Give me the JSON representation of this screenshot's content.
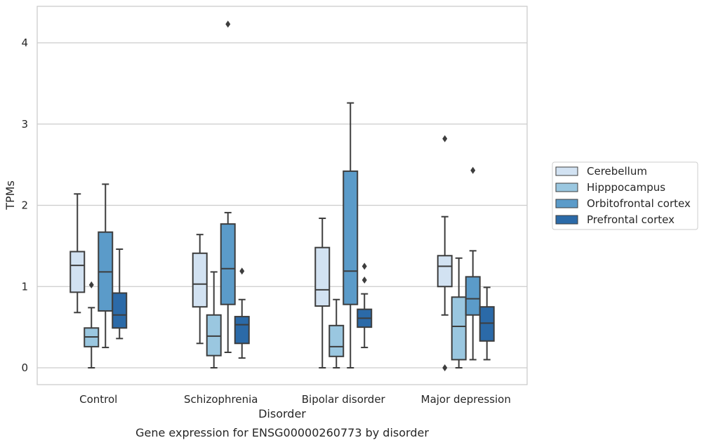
{
  "caption": "Gene expression for ENSG00000260773 by disorder",
  "chart_data": {
    "type": "box",
    "xlabel": "Disorder",
    "ylabel": "TPMs",
    "ylim": [
      -0.2,
      4.45
    ],
    "yticks": [
      0,
      1,
      2,
      3,
      4
    ],
    "grid": "horizontal",
    "legend_placement": "right",
    "categories": [
      "Control",
      "Schizophrenia",
      "Bipolar disorder",
      "Major depression"
    ],
    "series": [
      {
        "name": "Cerebellum",
        "color": "#d2e2f2",
        "boxes": [
          {
            "whislo": 0.68,
            "q1": 0.93,
            "med": 1.26,
            "q3": 1.43,
            "whishi": 2.14,
            "fliers": []
          },
          {
            "whislo": 0.3,
            "q1": 0.75,
            "med": 1.03,
            "q3": 1.41,
            "whishi": 1.64,
            "fliers": []
          },
          {
            "whislo": 0.0,
            "q1": 0.76,
            "med": 0.96,
            "q3": 1.48,
            "whishi": 1.84,
            "fliers": []
          },
          {
            "whislo": 0.65,
            "q1": 1.0,
            "med": 1.25,
            "q3": 1.38,
            "whishi": 1.86,
            "fliers": [
              0.0,
              2.82
            ]
          }
        ]
      },
      {
        "name": "Hipppocampus",
        "color": "#9ac7e0",
        "boxes": [
          {
            "whislo": 0.0,
            "q1": 0.26,
            "med": 0.38,
            "q3": 0.49,
            "whishi": 0.74,
            "fliers": [
              1.02
            ]
          },
          {
            "whislo": 0.0,
            "q1": 0.15,
            "med": 0.39,
            "q3": 0.65,
            "whishi": 1.18,
            "fliers": []
          },
          {
            "whislo": 0.0,
            "q1": 0.14,
            "med": 0.26,
            "q3": 0.52,
            "whishi": 0.84,
            "fliers": []
          },
          {
            "whislo": 0.0,
            "q1": 0.1,
            "med": 0.51,
            "q3": 0.87,
            "whishi": 1.35,
            "fliers": []
          }
        ]
      },
      {
        "name": "Orbitofrontal cortex",
        "color": "#5b9bc9",
        "boxes": [
          {
            "whislo": 0.25,
            "q1": 0.7,
            "med": 1.18,
            "q3": 1.67,
            "whishi": 2.26,
            "fliers": []
          },
          {
            "whislo": 0.19,
            "q1": 0.78,
            "med": 1.22,
            "q3": 1.77,
            "whishi": 1.91,
            "fliers": [
              4.23
            ]
          },
          {
            "whislo": 0.0,
            "q1": 0.78,
            "med": 1.19,
            "q3": 2.42,
            "whishi": 3.26,
            "fliers": []
          },
          {
            "whislo": 0.1,
            "q1": 0.65,
            "med": 0.85,
            "q3": 1.12,
            "whishi": 1.44,
            "fliers": [
              2.43
            ]
          }
        ]
      },
      {
        "name": "Prefrontal cortex",
        "color": "#2b6aa8",
        "boxes": [
          {
            "whislo": 0.36,
            "q1": 0.49,
            "med": 0.65,
            "q3": 0.92,
            "whishi": 1.46,
            "fliers": []
          },
          {
            "whislo": 0.12,
            "q1": 0.3,
            "med": 0.53,
            "q3": 0.63,
            "whishi": 0.84,
            "fliers": [
              1.19
            ]
          },
          {
            "whislo": 0.25,
            "q1": 0.5,
            "med": 0.61,
            "q3": 0.72,
            "whishi": 0.91,
            "fliers": [
              1.08,
              1.25
            ]
          },
          {
            "whislo": 0.1,
            "q1": 0.33,
            "med": 0.55,
            "q3": 0.75,
            "whishi": 0.99,
            "fliers": []
          }
        ]
      }
    ]
  }
}
